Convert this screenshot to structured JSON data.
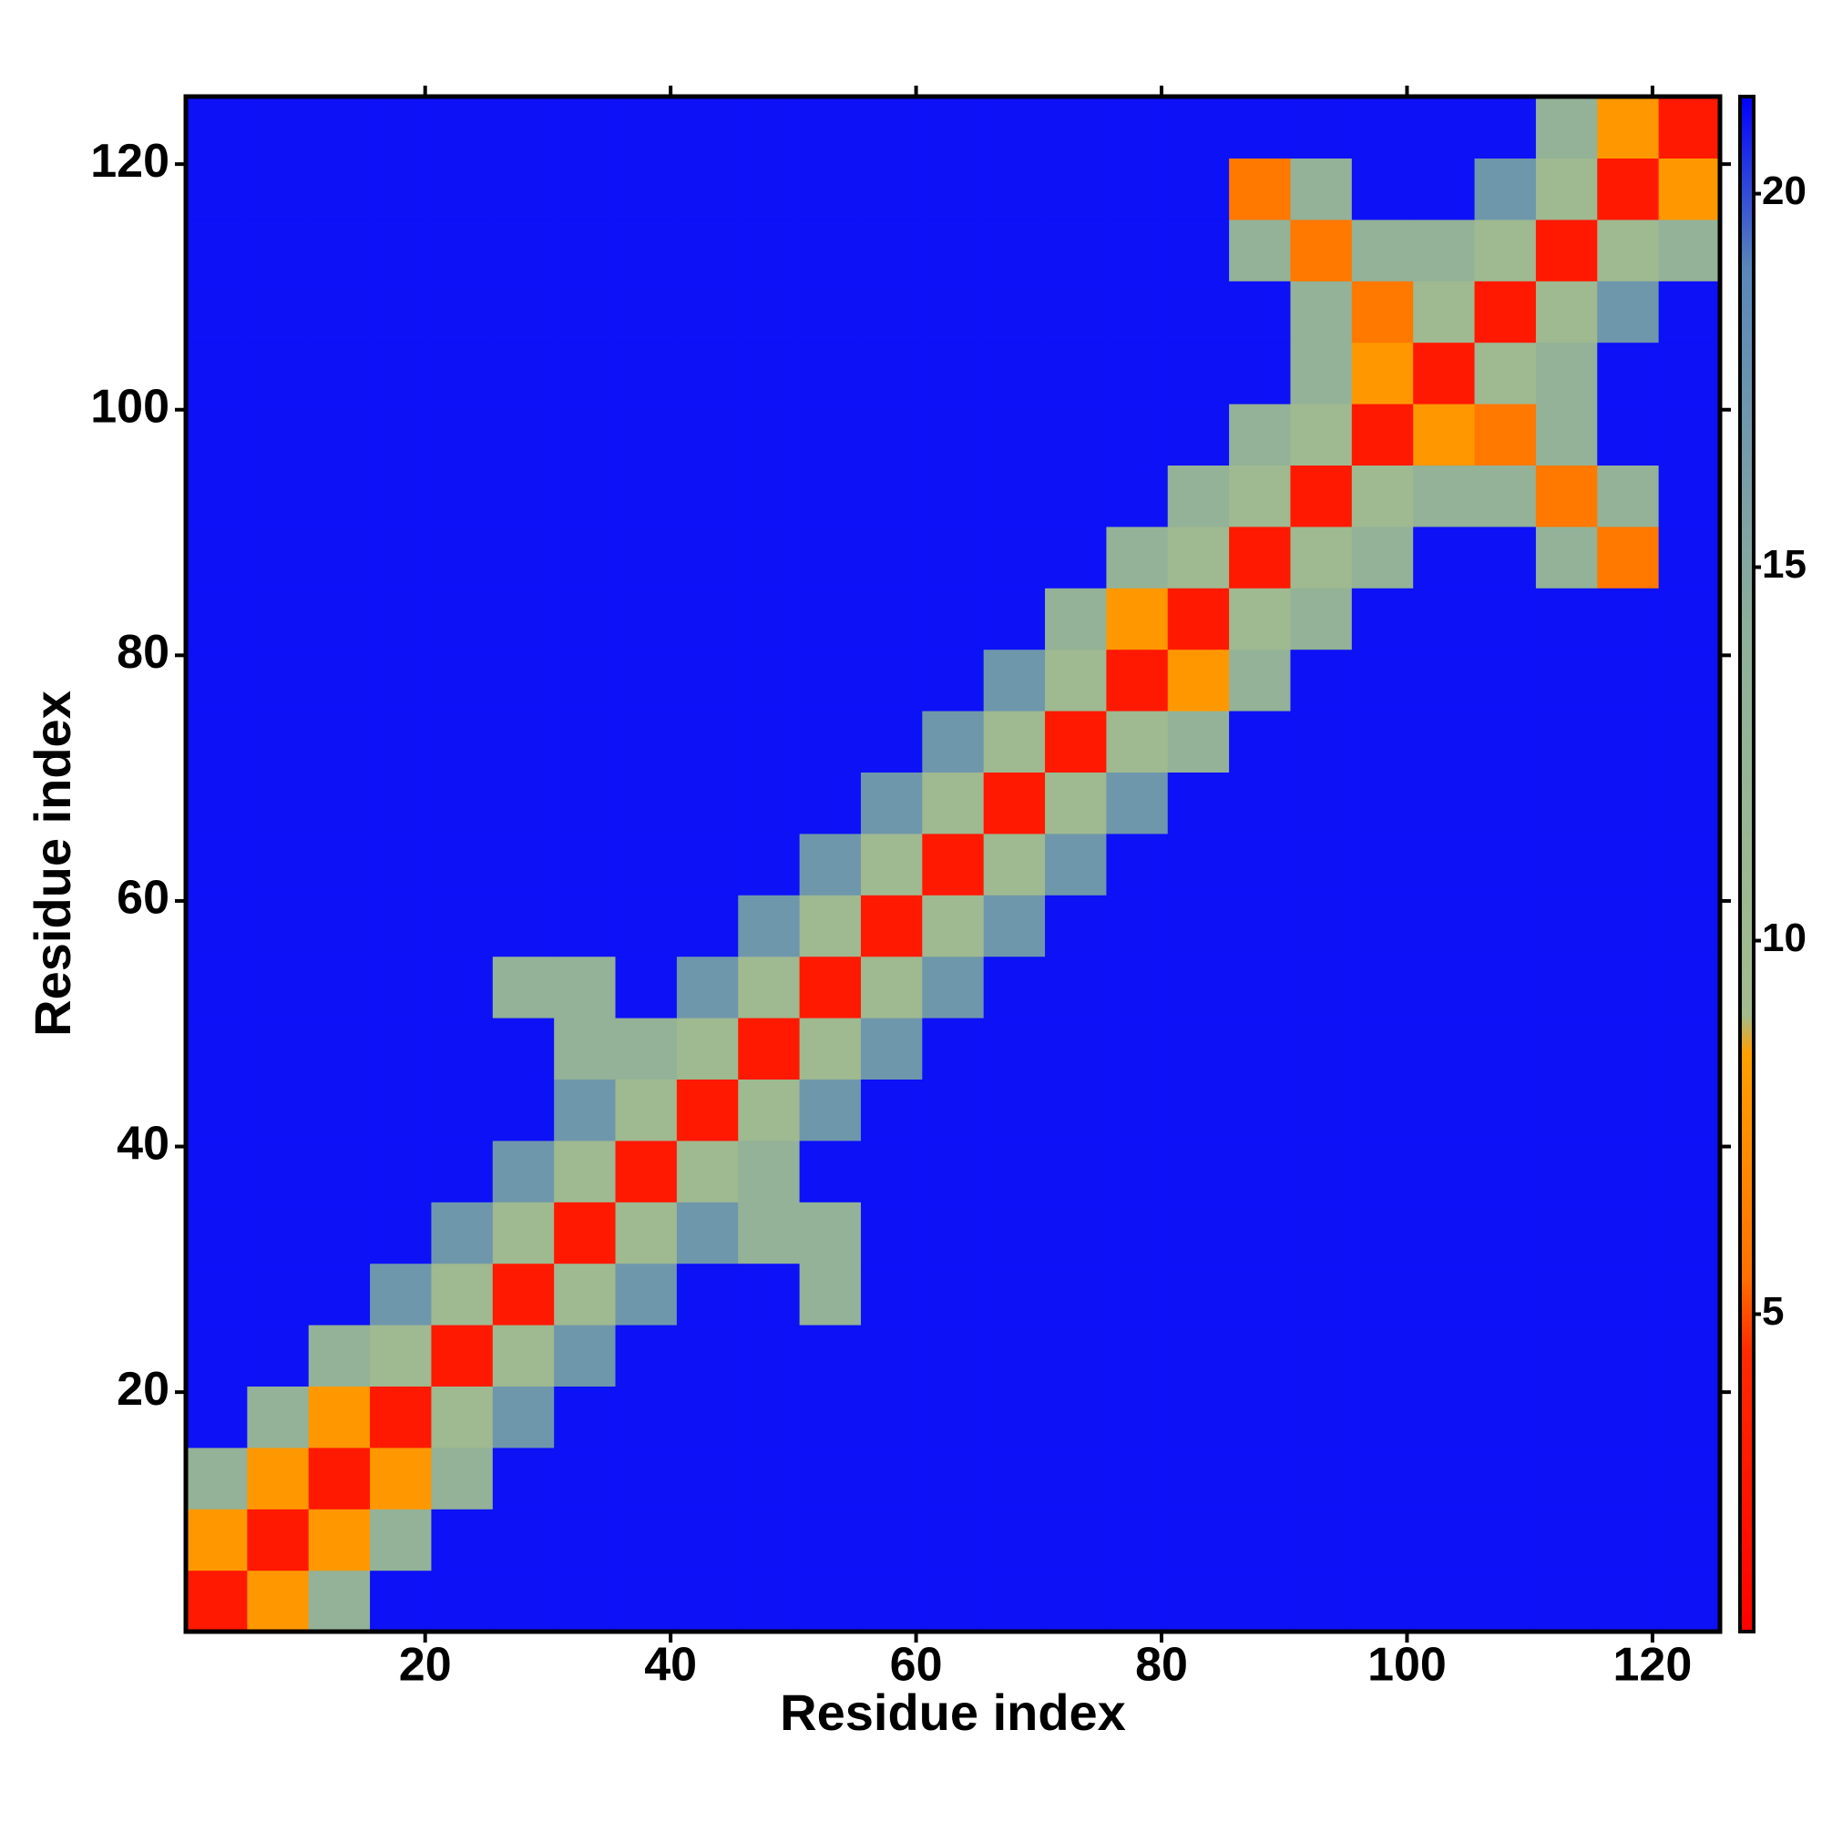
{
  "chart_data": {
    "type": "heatmap",
    "x_label": "Residue index",
    "y_label": "Residue index",
    "x": [
      3,
      8,
      13,
      18,
      23,
      28,
      33,
      38,
      43,
      48,
      53,
      58,
      63,
      68,
      73,
      78,
      83,
      88,
      93,
      98,
      103,
      108,
      113,
      118,
      123
    ],
    "y": [
      3,
      8,
      13,
      18,
      23,
      28,
      33,
      38,
      43,
      48,
      53,
      58,
      63,
      68,
      73,
      78,
      83,
      88,
      93,
      98,
      103,
      108,
      113,
      118,
      123
    ],
    "cell_size": 5,
    "z": [
      [
        3,
        8,
        13,
        21,
        21,
        21,
        21,
        21,
        21,
        21,
        21,
        21,
        21,
        21,
        21,
        21,
        21,
        21,
        21,
        21,
        21,
        21,
        21,
        21,
        21
      ],
      [
        8,
        3,
        8,
        13,
        21,
        21,
        21,
        21,
        21,
        21,
        21,
        21,
        21,
        21,
        21,
        21,
        21,
        21,
        21,
        21,
        21,
        21,
        21,
        21,
        21
      ],
      [
        13,
        8,
        3,
        8,
        13,
        21,
        21,
        21,
        21,
        21,
        21,
        21,
        21,
        21,
        21,
        21,
        21,
        21,
        21,
        21,
        21,
        21,
        21,
        21,
        21
      ],
      [
        21,
        13,
        8,
        3,
        10,
        17,
        21,
        21,
        21,
        21,
        21,
        21,
        21,
        21,
        21,
        21,
        21,
        21,
        21,
        21,
        21,
        21,
        21,
        21,
        21
      ],
      [
        21,
        21,
        13,
        10,
        3,
        10,
        17,
        21,
        21,
        21,
        21,
        21,
        21,
        21,
        21,
        21,
        21,
        21,
        21,
        21,
        21,
        21,
        21,
        21,
        21
      ],
      [
        21,
        21,
        21,
        17,
        10,
        3,
        10,
        17,
        21,
        21,
        13,
        21,
        21,
        21,
        21,
        21,
        21,
        21,
        21,
        21,
        21,
        21,
        21,
        21,
        21
      ],
      [
        21,
        21,
        21,
        21,
        17,
        10,
        3,
        10,
        17,
        13,
        13,
        21,
        21,
        21,
        21,
        21,
        21,
        21,
        21,
        21,
        21,
        21,
        21,
        21,
        21
      ],
      [
        21,
        21,
        21,
        21,
        21,
        17,
        10,
        3,
        10,
        13,
        21,
        21,
        21,
        21,
        21,
        21,
        21,
        21,
        21,
        21,
        21,
        21,
        21,
        21,
        21
      ],
      [
        21,
        21,
        21,
        21,
        21,
        21,
        17,
        10,
        3,
        10,
        17,
        21,
        21,
        21,
        21,
        21,
        21,
        21,
        21,
        21,
        21,
        21,
        21,
        21,
        21
      ],
      [
        21,
        21,
        21,
        21,
        21,
        21,
        13,
        13,
        10,
        3,
        10,
        17,
        21,
        21,
        21,
        21,
        21,
        21,
        21,
        21,
        21,
        21,
        21,
        21,
        21
      ],
      [
        21,
        21,
        21,
        21,
        21,
        13,
        13,
        21,
        17,
        10,
        3,
        10,
        17,
        21,
        21,
        21,
        21,
        21,
        21,
        21,
        21,
        21,
        21,
        21,
        21
      ],
      [
        21,
        21,
        21,
        21,
        21,
        21,
        21,
        21,
        21,
        17,
        10,
        3,
        10,
        17,
        21,
        21,
        21,
        21,
        21,
        21,
        21,
        21,
        21,
        21,
        21
      ],
      [
        21,
        21,
        21,
        21,
        21,
        21,
        21,
        21,
        21,
        21,
        17,
        10,
        3,
        10,
        17,
        21,
        21,
        21,
        21,
        21,
        21,
        21,
        21,
        21,
        21
      ],
      [
        21,
        21,
        21,
        21,
        21,
        21,
        21,
        21,
        21,
        21,
        21,
        17,
        10,
        3,
        10,
        17,
        21,
        21,
        21,
        21,
        21,
        21,
        21,
        21,
        21
      ],
      [
        21,
        21,
        21,
        21,
        21,
        21,
        21,
        21,
        21,
        21,
        21,
        21,
        17,
        10,
        3,
        10,
        13,
        21,
        21,
        21,
        21,
        21,
        21,
        21,
        21
      ],
      [
        21,
        21,
        21,
        21,
        21,
        21,
        21,
        21,
        21,
        21,
        21,
        21,
        21,
        17,
        10,
        3,
        8,
        13,
        21,
        21,
        21,
        21,
        21,
        21,
        21
      ],
      [
        21,
        21,
        21,
        21,
        21,
        21,
        21,
        21,
        21,
        21,
        21,
        21,
        21,
        21,
        13,
        8,
        3,
        10,
        13,
        21,
        21,
        21,
        21,
        21,
        21
      ],
      [
        21,
        21,
        21,
        21,
        21,
        21,
        21,
        21,
        21,
        21,
        21,
        21,
        21,
        21,
        21,
        13,
        10,
        3,
        10,
        13,
        21,
        21,
        13,
        6,
        21
      ],
      [
        21,
        21,
        21,
        21,
        21,
        21,
        21,
        21,
        21,
        21,
        21,
        21,
        21,
        21,
        21,
        21,
        13,
        10,
        3,
        10,
        13,
        13,
        6,
        13,
        21
      ],
      [
        21,
        21,
        21,
        21,
        21,
        21,
        21,
        21,
        21,
        21,
        21,
        21,
        21,
        21,
        21,
        21,
        21,
        13,
        10,
        3,
        8,
        6,
        13,
        21,
        21
      ],
      [
        21,
        21,
        21,
        21,
        21,
        21,
        21,
        21,
        21,
        21,
        21,
        21,
        21,
        21,
        21,
        21,
        21,
        21,
        13,
        8,
        3,
        10,
        13,
        21,
        21
      ],
      [
        21,
        21,
        21,
        21,
        21,
        21,
        21,
        21,
        21,
        21,
        21,
        21,
        21,
        21,
        21,
        21,
        21,
        21,
        13,
        6,
        10,
        3,
        10,
        17,
        21
      ],
      [
        21,
        21,
        21,
        21,
        21,
        21,
        21,
        21,
        21,
        21,
        21,
        21,
        21,
        21,
        21,
        21,
        21,
        13,
        6,
        13,
        13,
        10,
        3,
        10,
        13
      ],
      [
        21,
        21,
        21,
        21,
        21,
        21,
        21,
        21,
        21,
        21,
        21,
        21,
        21,
        21,
        21,
        21,
        21,
        6,
        13,
        21,
        21,
        17,
        10,
        3,
        8
      ],
      [
        21,
        21,
        21,
        21,
        21,
        21,
        21,
        21,
        21,
        21,
        21,
        21,
        21,
        21,
        21,
        21,
        21,
        21,
        21,
        21,
        21,
        21,
        13,
        8,
        3
      ]
    ],
    "xlim": [
      0.5,
      125.5
    ],
    "ylim": [
      0.5,
      125.5
    ],
    "xticks": [
      20,
      40,
      60,
      80,
      100,
      120
    ],
    "yticks": [
      20,
      40,
      60,
      80,
      100,
      120
    ],
    "clim": [
      0.75,
      21.3
    ],
    "cticks": [
      5,
      10,
      15,
      20
    ],
    "colorscale": [
      [
        0.75,
        "#ff0000"
      ],
      [
        4.5,
        "#ff2a00"
      ],
      [
        5.5,
        "#ff7000"
      ],
      [
        8.5,
        "#ffa000"
      ],
      [
        9,
        "#a3bb8d"
      ],
      [
        14,
        "#8fb09a"
      ],
      [
        19,
        "#5a86b8"
      ],
      [
        21.3,
        "#0000ff"
      ]
    ]
  }
}
